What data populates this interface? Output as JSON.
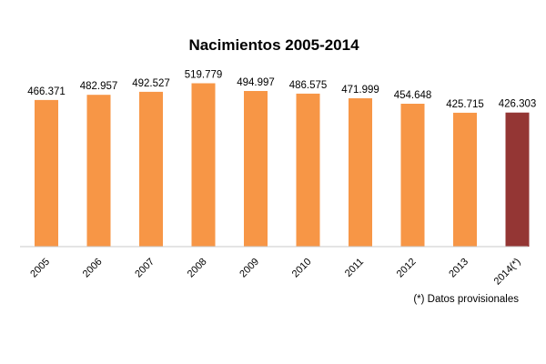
{
  "chart_data": {
    "type": "bar",
    "title": "Nacimientos 2005-2014",
    "categories": [
      "2005",
      "2006",
      "2007",
      "2008",
      "2009",
      "2010",
      "2011",
      "2012",
      "2013",
      "2014(*)"
    ],
    "values": [
      466371,
      482957,
      492527,
      519779,
      494997,
      486575,
      471999,
      454648,
      425715,
      426303
    ],
    "value_labels": [
      "466.371",
      "482.957",
      "492.527",
      "519.779",
      "494.997",
      "486.575",
      "471.999",
      "454.648",
      "425.715",
      "426.303"
    ],
    "bar_colors": [
      "#f79646",
      "#f79646",
      "#f79646",
      "#f79646",
      "#f79646",
      "#f79646",
      "#f79646",
      "#f79646",
      "#f79646",
      "#943634"
    ],
    "ylim": [
      0,
      560000
    ],
    "xlabel": "",
    "ylabel": "",
    "grid": false,
    "footnote": "(*) Datos provisionales"
  }
}
